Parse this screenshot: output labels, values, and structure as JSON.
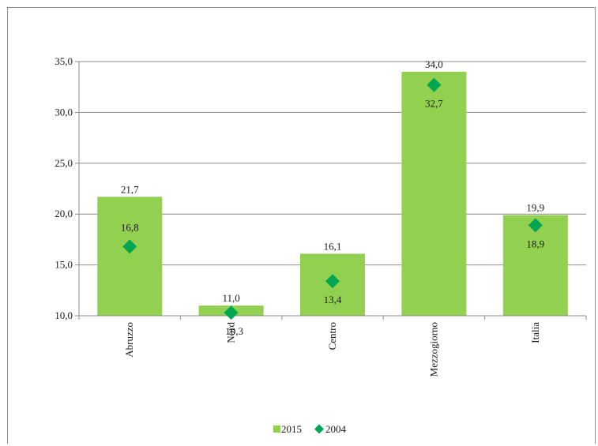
{
  "chart_data": {
    "type": "bar",
    "categories": [
      "Abruzzo",
      "Nord",
      "Centro",
      "Mezzogiorno",
      "Italia"
    ],
    "series": [
      {
        "name": "2015",
        "kind": "bar",
        "color": "#92d050",
        "values": [
          21.7,
          11.0,
          16.1,
          34.0,
          19.9
        ],
        "labels": [
          "21,7",
          "11,0",
          "16,1",
          "34,0",
          "19,9"
        ]
      },
      {
        "name": "2004",
        "kind": "marker",
        "marker": "diamond",
        "color": "#00a651",
        "values": [
          16.8,
          10.3,
          13.4,
          32.7,
          18.9
        ],
        "labels": [
          "16,8",
          "10,3",
          "13,4",
          "32,7",
          "18,9"
        ]
      }
    ],
    "yticks": [
      "10,0",
      "15,0",
      "20,0",
      "25,0",
      "30,0",
      "35,0"
    ],
    "ytick_values": [
      10,
      15,
      20,
      25,
      30,
      35
    ],
    "ylim": [
      10,
      35
    ],
    "grid": true,
    "legend_position": "bottom",
    "title": "",
    "xlabel": "",
    "ylabel": ""
  }
}
